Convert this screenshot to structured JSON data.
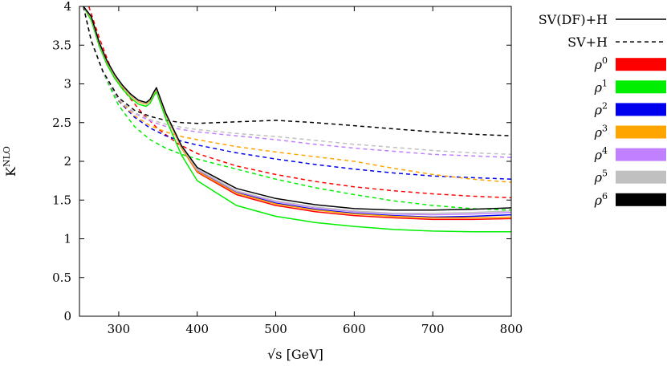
{
  "chart_data": {
    "type": "line",
    "title": "",
    "xlabel": "√s [GeV]",
    "xlabel_parts": {
      "root": "√s",
      "unit": "[GeV]"
    },
    "ylabel": "K^NLO",
    "ylabel_parts": {
      "base": "K",
      "sup": "NLO"
    },
    "xlim": [
      250,
      800
    ],
    "ylim": [
      0,
      4
    ],
    "xticks": [
      300,
      400,
      500,
      600,
      700,
      800
    ],
    "yticks": [
      0,
      0.5,
      1,
      1.5,
      2,
      2.5,
      3,
      3.5,
      4
    ],
    "ytick_labels": [
      "0",
      "0.5",
      "1",
      "1.5",
      "2",
      "2.5",
      "3",
      "3.5",
      "4"
    ],
    "grid": false,
    "legend_position": "right",
    "legend": [
      {
        "label": "SV(DF)+H",
        "style": "solid",
        "color": "#000000"
      },
      {
        "label": "SV+H",
        "style": "dashed",
        "color": "#000000"
      },
      {
        "label": "ρ",
        "sup": "0",
        "style": "box",
        "color": "#ff0000"
      },
      {
        "label": "ρ",
        "sup": "1",
        "style": "box",
        "color": "#00ee00"
      },
      {
        "label": "ρ",
        "sup": "2",
        "style": "box",
        "color": "#0000ee"
      },
      {
        "label": "ρ",
        "sup": "3",
        "style": "box",
        "color": "#ffa500"
      },
      {
        "label": "ρ",
        "sup": "4",
        "style": "box",
        "color": "#c080ff"
      },
      {
        "label": "ρ",
        "sup": "5",
        "style": "box",
        "color": "#c0c0c0"
      },
      {
        "label": "ρ",
        "sup": "6",
        "style": "box",
        "color": "#000000"
      }
    ],
    "series": [
      {
        "name": "SV(DF)+H ρ^0",
        "color": "#ff0000",
        "style": "solid",
        "x": [
          255,
          265,
          275,
          285,
          295,
          305,
          315,
          325,
          335,
          340,
          345,
          348,
          352,
          360,
          380,
          400,
          450,
          500,
          550,
          600,
          650,
          700,
          750,
          800
        ],
        "y": [
          4.0,
          3.85,
          3.52,
          3.28,
          3.1,
          2.96,
          2.85,
          2.77,
          2.74,
          2.78,
          2.88,
          2.93,
          2.82,
          2.6,
          2.17,
          1.86,
          1.57,
          1.43,
          1.35,
          1.3,
          1.27,
          1.25,
          1.25,
          1.26
        ]
      },
      {
        "name": "SV(DF)+H ρ^1",
        "color": "#00ee00",
        "style": "solid",
        "x": [
          255,
          265,
          275,
          285,
          295,
          305,
          315,
          325,
          335,
          340,
          345,
          348,
          352,
          360,
          380,
          400,
          450,
          500,
          550,
          600,
          650,
          700,
          750,
          800
        ],
        "y": [
          4.0,
          3.82,
          3.49,
          3.25,
          3.07,
          2.93,
          2.82,
          2.74,
          2.71,
          2.75,
          2.85,
          2.9,
          2.78,
          2.55,
          2.08,
          1.75,
          1.43,
          1.29,
          1.21,
          1.16,
          1.12,
          1.1,
          1.09,
          1.09
        ]
      },
      {
        "name": "SV(DF)+H ρ^2",
        "color": "#0000ee",
        "style": "solid",
        "x": [
          255,
          265,
          275,
          285,
          295,
          305,
          315,
          325,
          335,
          340,
          345,
          348,
          352,
          360,
          380,
          400,
          450,
          500,
          550,
          600,
          650,
          700,
          750,
          800
        ],
        "y": [
          4.0,
          3.86,
          3.53,
          3.29,
          3.11,
          2.97,
          2.86,
          2.78,
          2.75,
          2.79,
          2.89,
          2.94,
          2.83,
          2.61,
          2.18,
          1.88,
          1.6,
          1.46,
          1.38,
          1.33,
          1.3,
          1.28,
          1.29,
          1.31
        ]
      },
      {
        "name": "SV(DF)+H ρ^3",
        "color": "#ffa500",
        "style": "solid",
        "x": [
          255,
          265,
          275,
          285,
          295,
          305,
          315,
          325,
          335,
          340,
          345,
          348,
          352,
          360,
          380,
          400,
          450,
          500,
          550,
          600,
          650,
          700,
          750,
          800
        ],
        "y": [
          4.0,
          3.85,
          3.52,
          3.28,
          3.1,
          2.96,
          2.85,
          2.77,
          2.74,
          2.78,
          2.88,
          2.93,
          2.82,
          2.6,
          2.17,
          1.87,
          1.59,
          1.45,
          1.37,
          1.32,
          1.29,
          1.27,
          1.27,
          1.28
        ]
      },
      {
        "name": "SV(DF)+H ρ^4",
        "color": "#c080ff",
        "style": "solid",
        "x": [
          255,
          265,
          275,
          285,
          295,
          305,
          315,
          325,
          335,
          340,
          345,
          348,
          352,
          360,
          380,
          400,
          450,
          500,
          550,
          600,
          650,
          700,
          750,
          800
        ],
        "y": [
          4.0,
          3.86,
          3.53,
          3.29,
          3.11,
          2.97,
          2.86,
          2.78,
          2.75,
          2.79,
          2.89,
          2.94,
          2.83,
          2.61,
          2.19,
          1.89,
          1.61,
          1.48,
          1.4,
          1.35,
          1.32,
          1.31,
          1.32,
          1.34
        ]
      },
      {
        "name": "SV(DF)+H ρ^5",
        "color": "#c0c0c0",
        "style": "solid",
        "x": [
          255,
          265,
          275,
          285,
          295,
          305,
          315,
          325,
          335,
          340,
          345,
          348,
          352,
          360,
          380,
          400,
          450,
          500,
          550,
          600,
          650,
          700,
          750,
          800
        ],
        "y": [
          4.0,
          3.86,
          3.53,
          3.29,
          3.11,
          2.97,
          2.86,
          2.78,
          2.75,
          2.79,
          2.89,
          2.94,
          2.83,
          2.61,
          2.19,
          1.9,
          1.62,
          1.49,
          1.41,
          1.36,
          1.33,
          1.33,
          1.34,
          1.36
        ]
      },
      {
        "name": "SV(DF)+H ρ^6",
        "color": "#000000",
        "style": "solid",
        "x": [
          255,
          265,
          275,
          285,
          295,
          305,
          315,
          325,
          335,
          340,
          345,
          348,
          352,
          360,
          380,
          400,
          450,
          500,
          550,
          600,
          650,
          700,
          750,
          800
        ],
        "y": [
          4.0,
          3.87,
          3.54,
          3.3,
          3.12,
          2.98,
          2.87,
          2.79,
          2.76,
          2.8,
          2.9,
          2.95,
          2.84,
          2.62,
          2.2,
          1.92,
          1.65,
          1.52,
          1.44,
          1.39,
          1.37,
          1.37,
          1.38,
          1.4
        ]
      },
      {
        "name": "SV+H ρ^0",
        "color": "#ff0000",
        "style": "dashed",
        "x": [
          262,
          275,
          290,
          310,
          330,
          350,
          375,
          400,
          450,
          500,
          550,
          600,
          650,
          700,
          750,
          800
        ],
        "y": [
          4.0,
          3.6,
          3.2,
          2.87,
          2.62,
          2.42,
          2.23,
          2.1,
          1.94,
          1.83,
          1.74,
          1.67,
          1.62,
          1.58,
          1.55,
          1.53
        ]
      },
      {
        "name": "SV+H ρ^1",
        "color": "#00ee00",
        "style": "dashed",
        "x": [
          255,
          265,
          280,
          300,
          320,
          340,
          360,
          380,
          400,
          450,
          500,
          550,
          600,
          650,
          700,
          750,
          800
        ],
        "y": [
          4.0,
          3.55,
          3.15,
          2.72,
          2.45,
          2.28,
          2.17,
          2.09,
          2.03,
          1.9,
          1.77,
          1.66,
          1.57,
          1.49,
          1.43,
          1.39,
          1.37
        ]
      },
      {
        "name": "SV+H ρ^2",
        "color": "#0000ee",
        "style": "dashed",
        "x": [
          255,
          265,
          280,
          300,
          320,
          340,
          360,
          380,
          400,
          450,
          500,
          550,
          600,
          650,
          700,
          750,
          800
        ],
        "y": [
          4.0,
          3.55,
          3.15,
          2.78,
          2.57,
          2.43,
          2.33,
          2.26,
          2.21,
          2.11,
          2.03,
          1.96,
          1.9,
          1.85,
          1.81,
          1.79,
          1.77
        ]
      },
      {
        "name": "SV+H ρ^3",
        "color": "#ffa500",
        "style": "dashed",
        "x": [
          255,
          265,
          280,
          300,
          320,
          340,
          360,
          380,
          400,
          450,
          500,
          550,
          600,
          650,
          700,
          750,
          800
        ],
        "y": [
          4.0,
          3.55,
          3.15,
          2.79,
          2.59,
          2.46,
          2.38,
          2.32,
          2.28,
          2.19,
          2.12,
          2.06,
          2.0,
          1.91,
          1.83,
          1.77,
          1.73
        ]
      },
      {
        "name": "SV+H ρ^4",
        "color": "#c080ff",
        "style": "dashed",
        "x": [
          255,
          265,
          280,
          300,
          320,
          340,
          360,
          380,
          400,
          450,
          500,
          550,
          600,
          650,
          700,
          750,
          800
        ],
        "y": [
          4.0,
          3.55,
          3.15,
          2.8,
          2.62,
          2.52,
          2.45,
          2.41,
          2.38,
          2.33,
          2.28,
          2.22,
          2.17,
          2.13,
          2.09,
          2.07,
          2.05
        ]
      },
      {
        "name": "SV+H ρ^5",
        "color": "#c0c0c0",
        "style": "dashed",
        "x": [
          255,
          265,
          280,
          300,
          320,
          340,
          360,
          380,
          400,
          450,
          500,
          550,
          600,
          650,
          700,
          750,
          800
        ],
        "y": [
          4.0,
          3.55,
          3.15,
          2.8,
          2.63,
          2.54,
          2.48,
          2.44,
          2.41,
          2.36,
          2.32,
          2.27,
          2.22,
          2.18,
          2.14,
          2.11,
          2.09
        ]
      },
      {
        "name": "SV+H ρ^6",
        "color": "#000000",
        "style": "dashed",
        "x": [
          255,
          265,
          280,
          300,
          320,
          340,
          360,
          380,
          400,
          450,
          500,
          550,
          600,
          650,
          700,
          750,
          800
        ],
        "y": [
          4.0,
          3.56,
          3.16,
          2.82,
          2.66,
          2.58,
          2.53,
          2.5,
          2.49,
          2.51,
          2.53,
          2.5,
          2.46,
          2.42,
          2.38,
          2.35,
          2.33
        ]
      }
    ]
  }
}
